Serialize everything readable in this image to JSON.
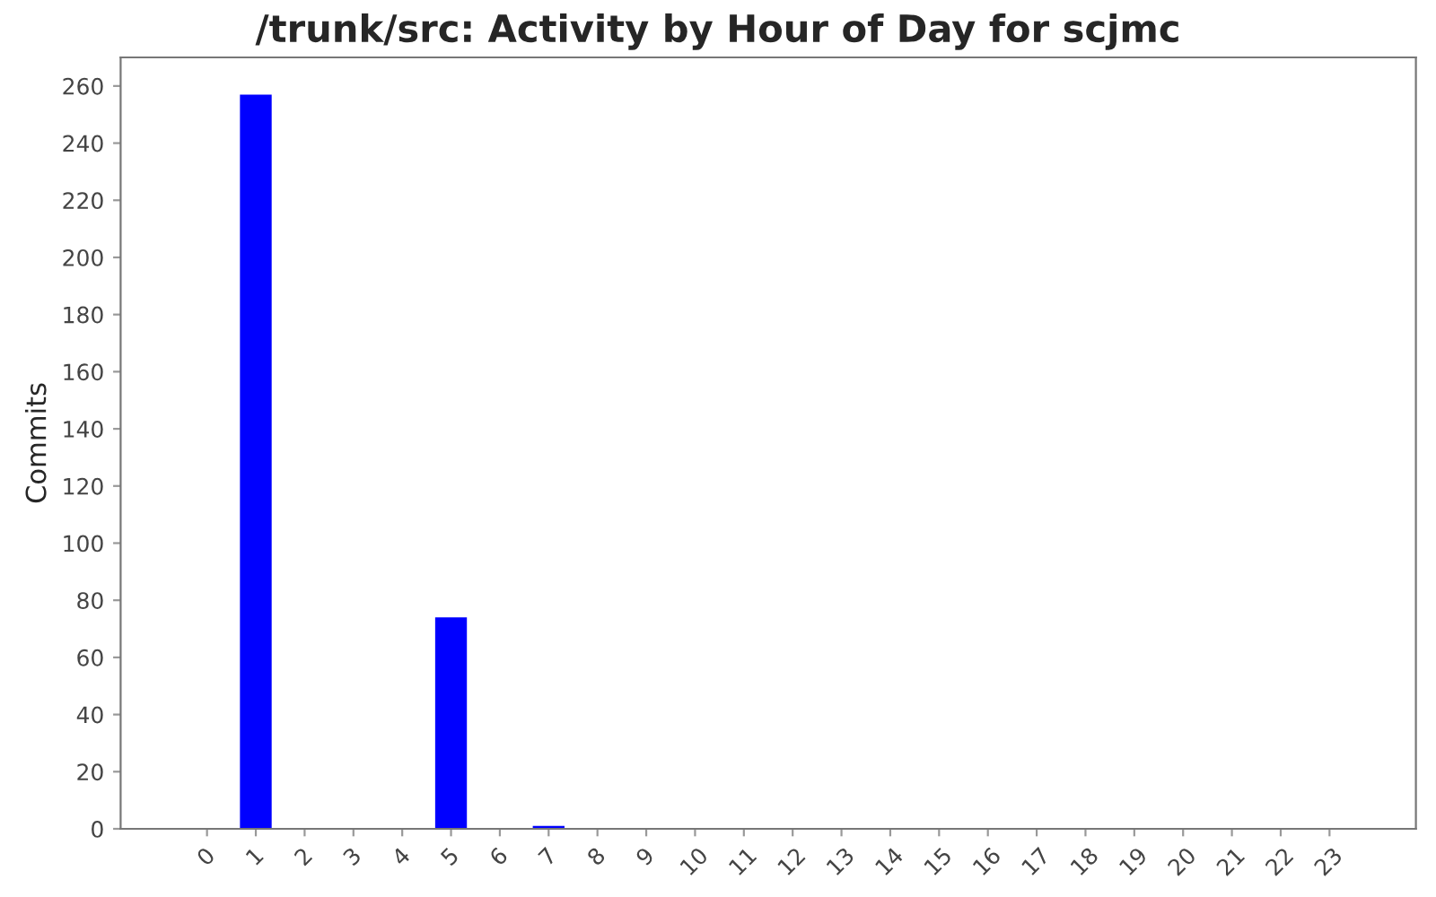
{
  "chart_data": {
    "type": "bar",
    "title": "/trunk/src: Activity by Hour of Day for scjmc",
    "ylabel": "Commits",
    "categories": [
      "0",
      "1",
      "2",
      "3",
      "4",
      "5",
      "6",
      "7",
      "8",
      "9",
      "10",
      "11",
      "12",
      "13",
      "14",
      "15",
      "16",
      "17",
      "18",
      "19",
      "20",
      "21",
      "22",
      "23"
    ],
    "values": [
      0,
      257,
      0,
      0,
      0,
      74,
      0,
      1,
      0,
      0,
      0,
      0,
      0,
      0,
      0,
      0,
      0,
      0,
      0,
      0,
      0,
      0,
      0,
      0
    ],
    "color": "#0000ff",
    "ylim": [
      0,
      270
    ],
    "yticks": [
      0,
      20,
      40,
      60,
      80,
      100,
      120,
      140,
      160,
      180,
      200,
      220,
      240,
      260
    ],
    "grid": false,
    "legend": false
  }
}
